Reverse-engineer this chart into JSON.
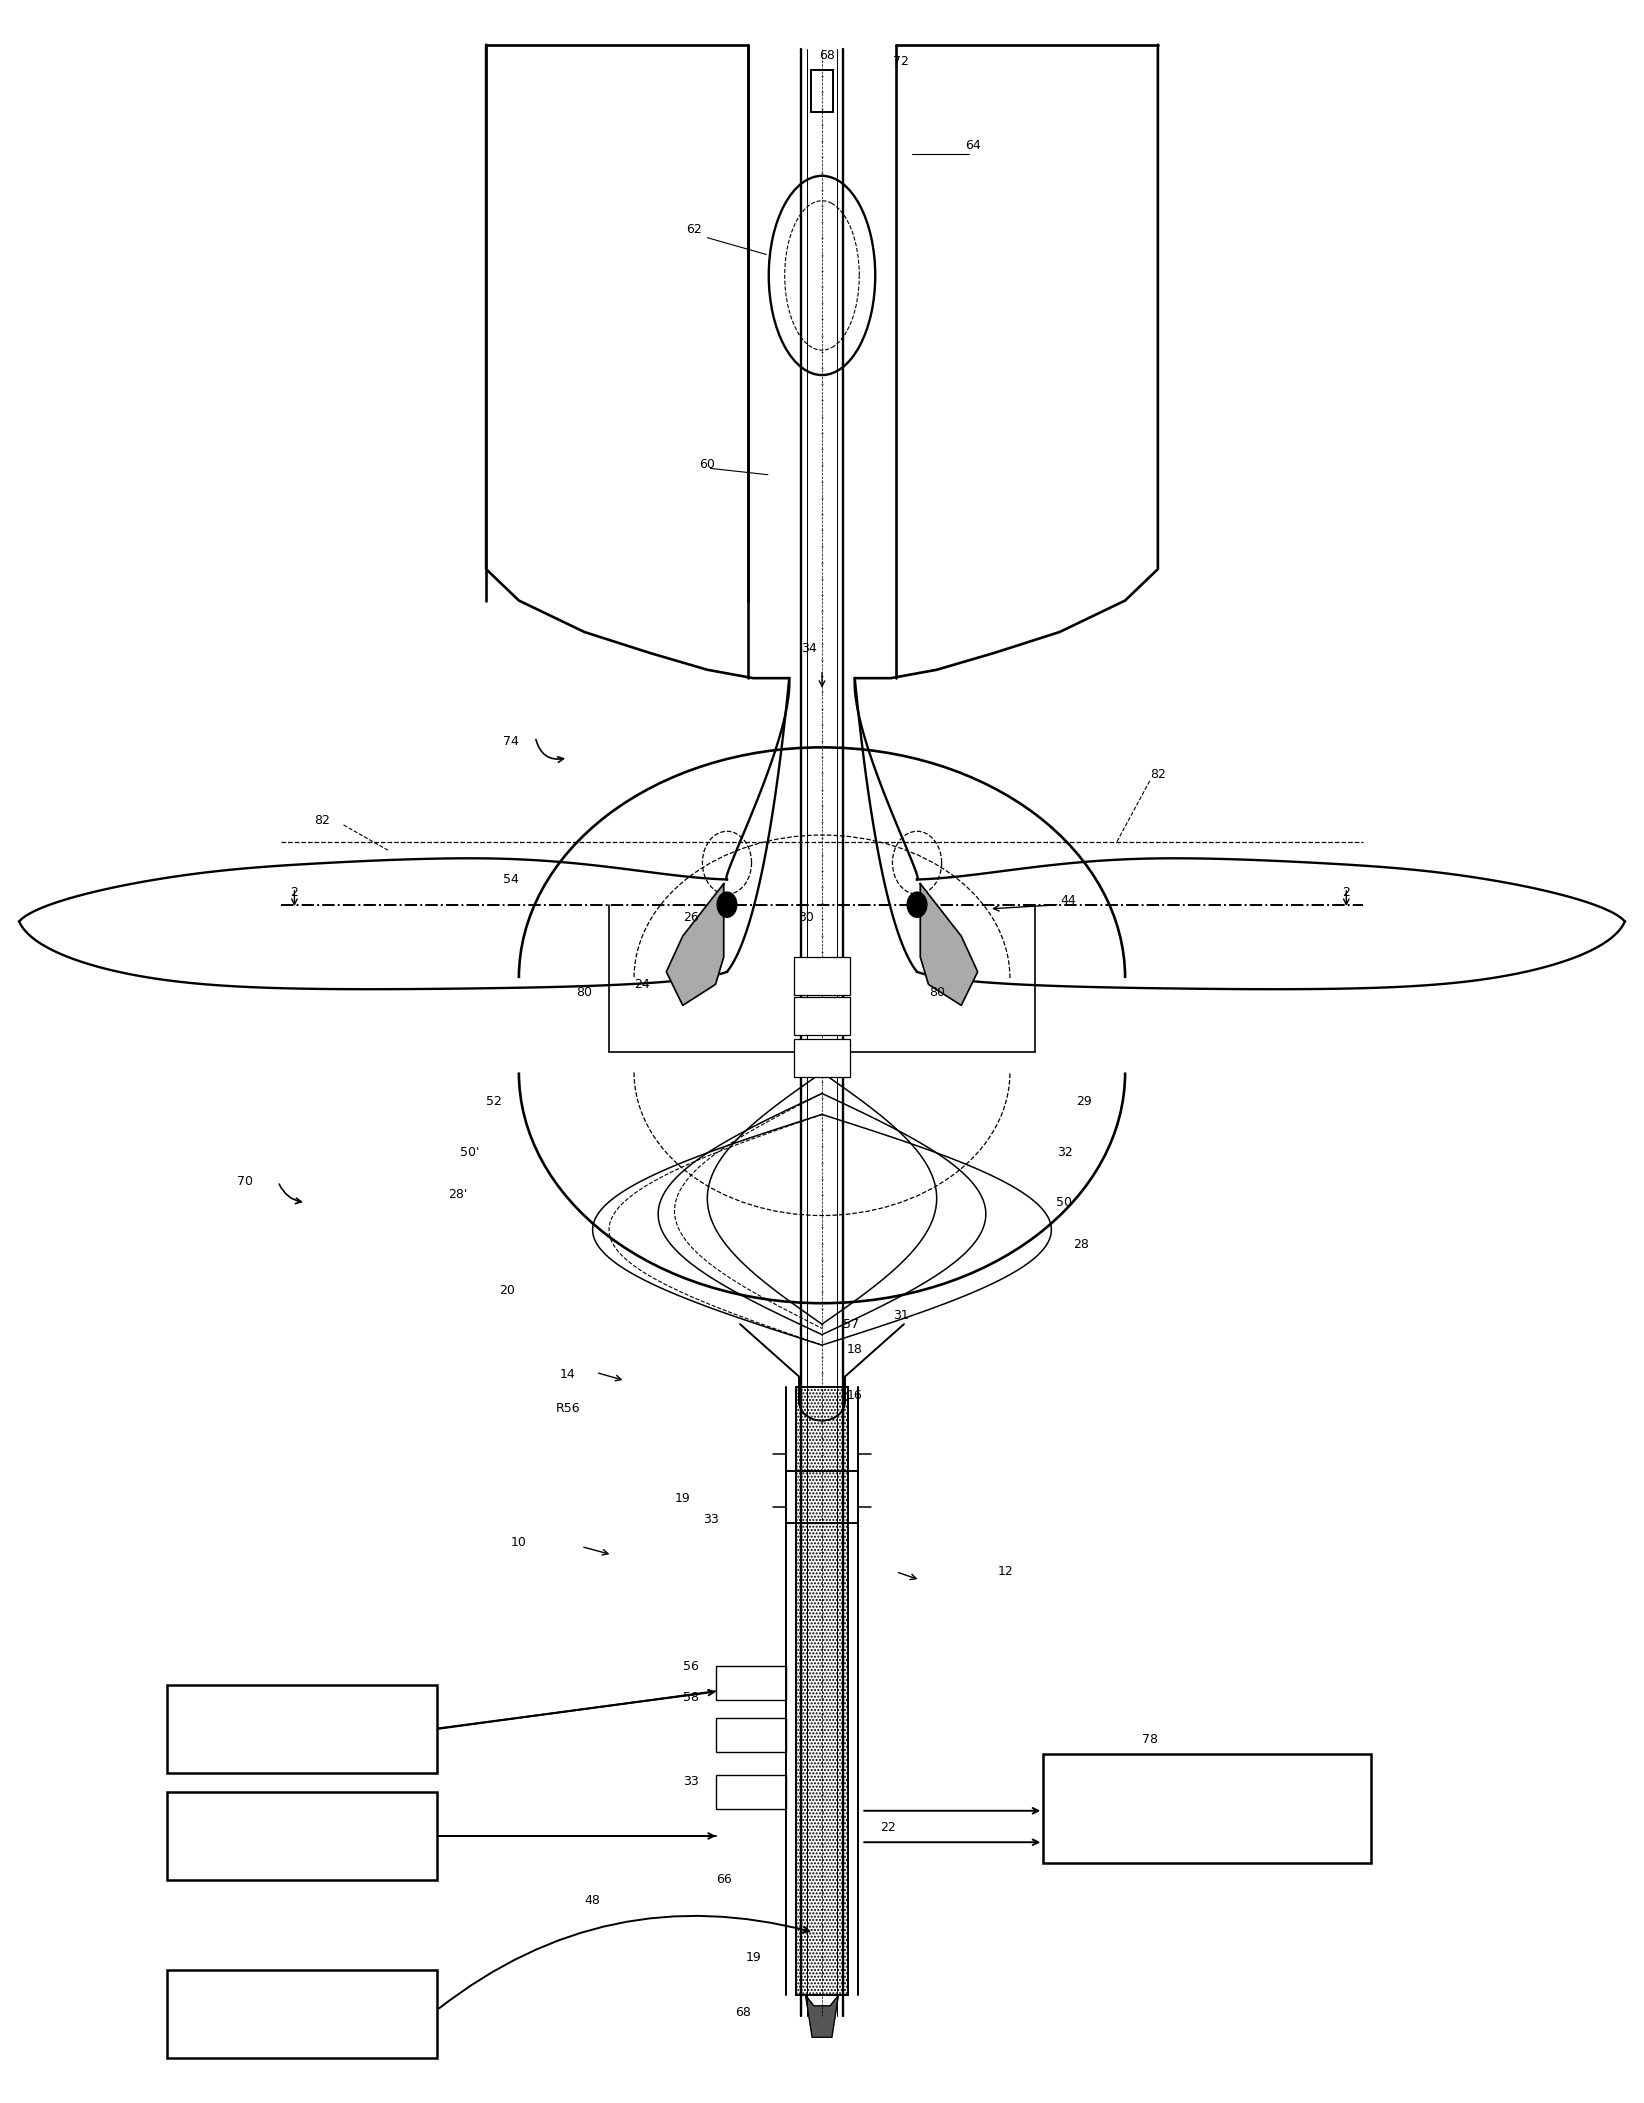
{
  "bg_color": "#ffffff",
  "line_color": "#000000",
  "fig_width": 16.44,
  "fig_height": 21.03
}
